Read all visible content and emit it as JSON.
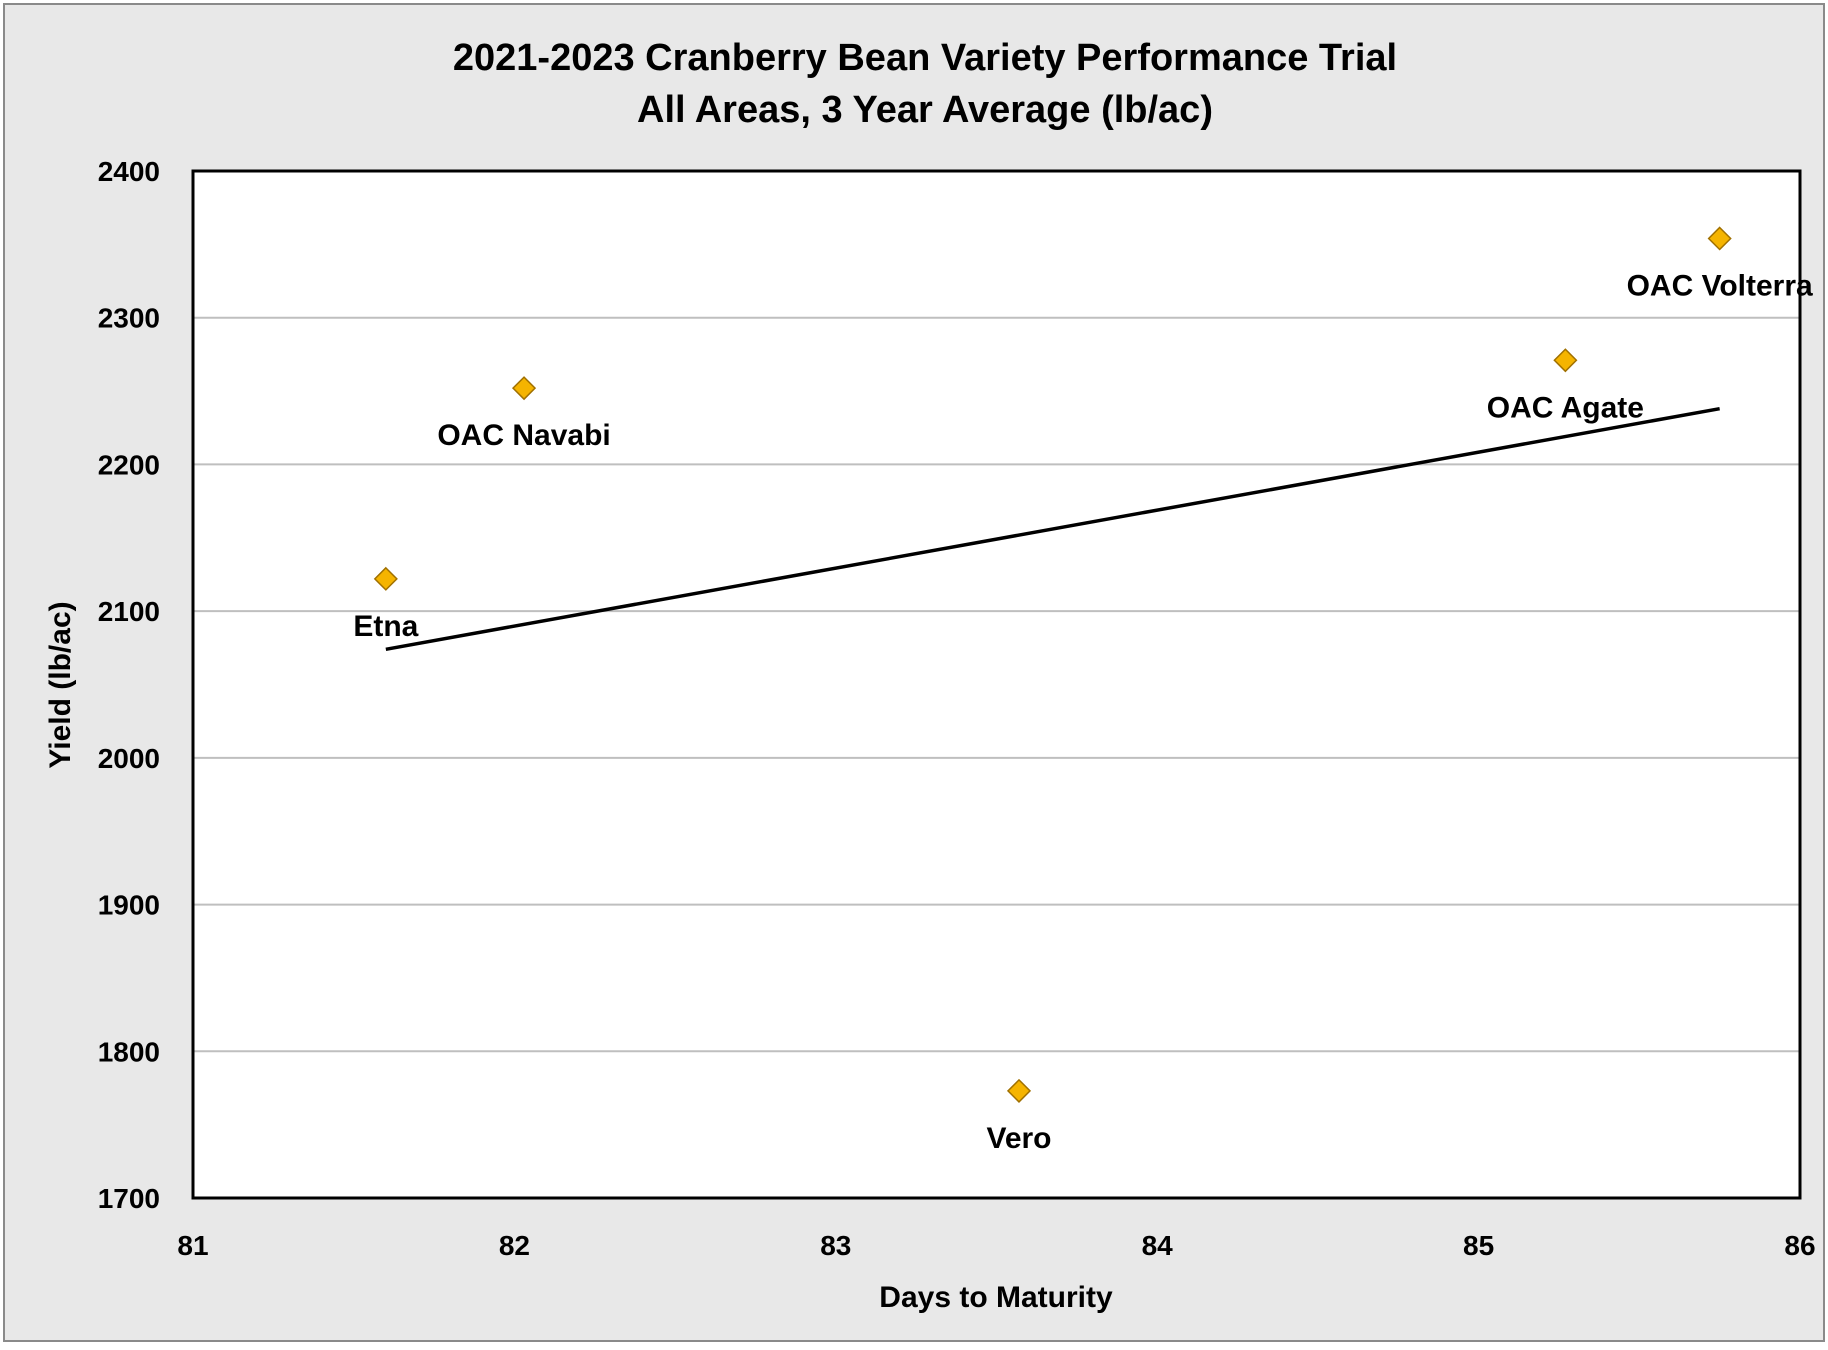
{
  "chart_data": {
    "type": "scatter",
    "title": "2021-2023 Cranberry Bean Variety Performance Trial",
    "subtitle": "All Areas, 3 Year Average (lb/ac)",
    "xlabel": "Days to Maturity",
    "ylabel": "Yield (lb/ac)",
    "xlim": [
      81,
      86
    ],
    "ylim": [
      1700,
      2400
    ],
    "x_ticks": [
      "81",
      "82",
      "83",
      "84",
      "85",
      "86"
    ],
    "y_ticks": [
      "1700",
      "1800",
      "1900",
      "2000",
      "2100",
      "2200",
      "2300",
      "2400"
    ],
    "grid": "horizontal",
    "legend": "none",
    "points": [
      {
        "label": "Etna",
        "x": 81.6,
        "y": 2122,
        "label_position": "below"
      },
      {
        "label": "OAC Navabi",
        "x": 82.03,
        "y": 2252,
        "label_position": "below"
      },
      {
        "label": "Vero",
        "x": 83.57,
        "y": 1773,
        "label_position": "below"
      },
      {
        "label": "OAC Agate",
        "x": 85.27,
        "y": 2271,
        "label_position": "below"
      },
      {
        "label": "OAC Volterra",
        "x": 85.75,
        "y": 2354,
        "label_position": "below"
      }
    ],
    "trendline": {
      "type": "linear",
      "x": [
        81.6,
        85.75
      ],
      "y": [
        2074,
        2238
      ]
    },
    "colors": {
      "background": "#e8e8e8",
      "plot_area": "#ffffff",
      "marker_fill": "#f5b400",
      "marker_stroke": "#a07000",
      "gridline": "#bfbfbf",
      "trendline": "#000000"
    }
  }
}
